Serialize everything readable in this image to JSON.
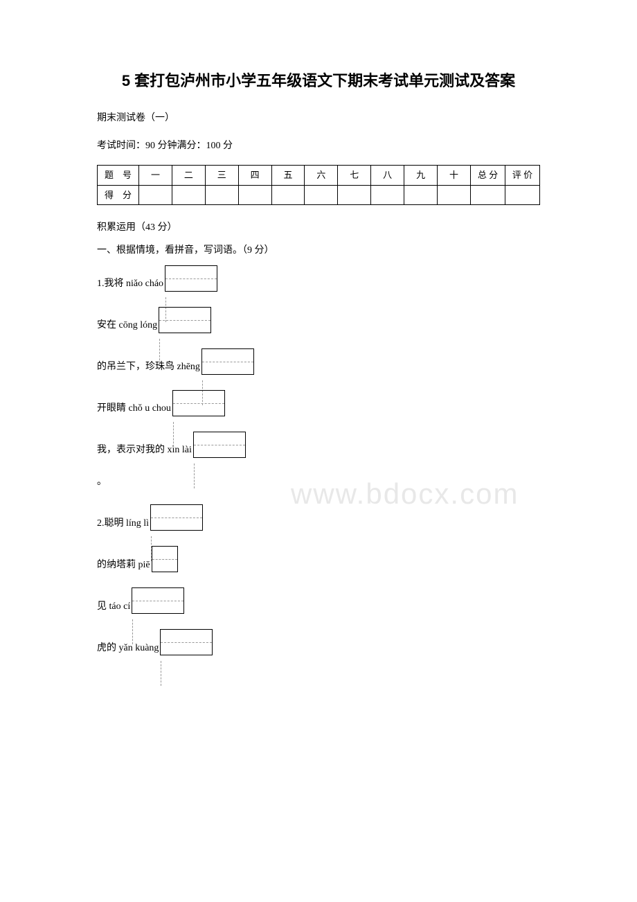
{
  "title": "5 套打包泸州市小学五年级语文下期末考试单元测试及答案",
  "subtitle": "期末测试卷（一）",
  "exam_info": "考试时间：90 分钟满分：100 分",
  "watermark": "www.bdocx.com",
  "score_table": {
    "row1": [
      "题　号",
      "一",
      "二",
      "三",
      "四",
      "五",
      "六",
      "七",
      "八",
      "九",
      "十",
      "总 分",
      "评 价"
    ],
    "row2_label": "得　分"
  },
  "section1": {
    "header": "积累运用（43 分）",
    "q1_header": "一、根据情境，看拼音，写词语。（9 分）",
    "items": [
      {
        "text": "1.我将 niǎo cháo",
        "cells": 2
      },
      {
        "text": "安在 cōng lóng",
        "cells": 2
      },
      {
        "text": "的吊兰下，珍珠鸟 zhēng",
        "cells": 2
      },
      {
        "text": "开眼睛 chǒ u  chou",
        "cells": 2
      },
      {
        "text": "我，表示对我的 xìn lài",
        "cells": 2
      },
      {
        "text": "。",
        "cells": 0,
        "no_box": true
      },
      {
        "text": "2.聪明 líng lì",
        "cells": 2
      },
      {
        "text": "的纳塔莉 piē",
        "cells": 1
      },
      {
        "text": "见 táo cí",
        "cells": 2
      },
      {
        "text": "虎的 yǎn kuàng",
        "cells": 2
      }
    ]
  }
}
